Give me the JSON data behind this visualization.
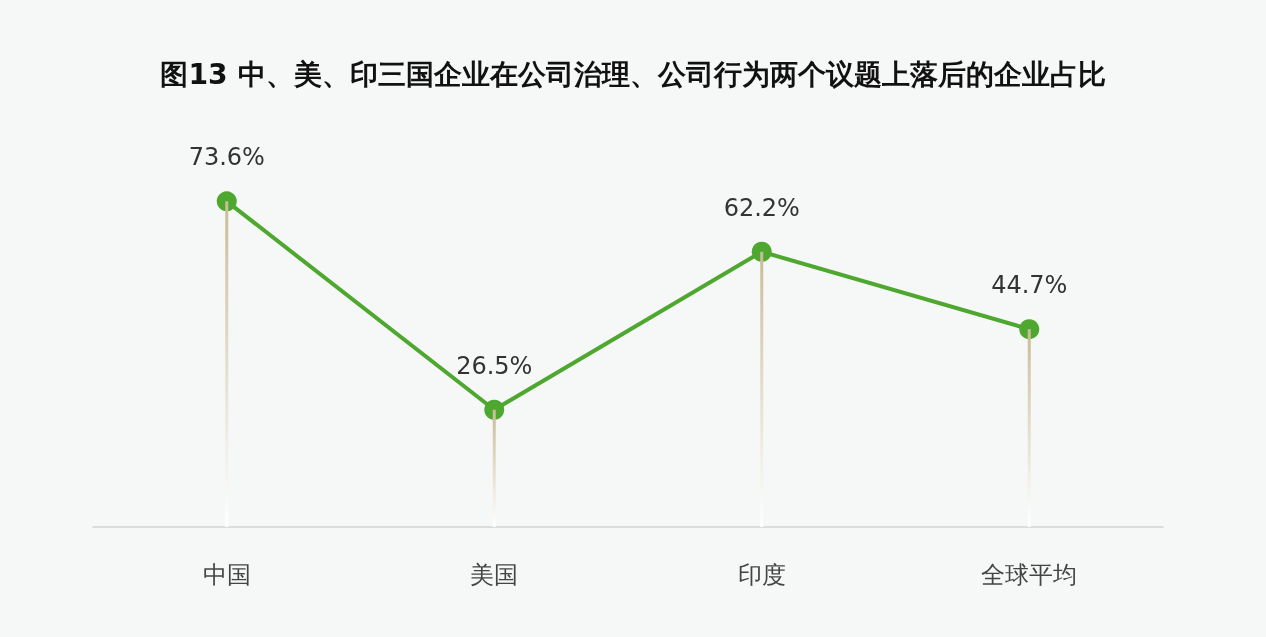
{
  "chart_data": {
    "type": "line",
    "title": "图13 中、美、印三国企业在公司治理、公司行为两个议题上落后的企业占比",
    "categories": [
      "中国",
      "美国",
      "印度",
      "全球平均"
    ],
    "series": [
      {
        "color": "#4ea72e",
        "values": [
          73.6,
          26.5,
          62.2,
          44.7
        ],
        "value_labels": [
          "73.6%",
          "26.5%",
          "62.2%",
          "44.7%"
        ]
      },
      {
        "type": "bar",
        "color": "#c9bb98",
        "values": [
          73.6,
          26.5,
          62.2,
          44.7
        ]
      }
    ],
    "marker": "circle"
  }
}
